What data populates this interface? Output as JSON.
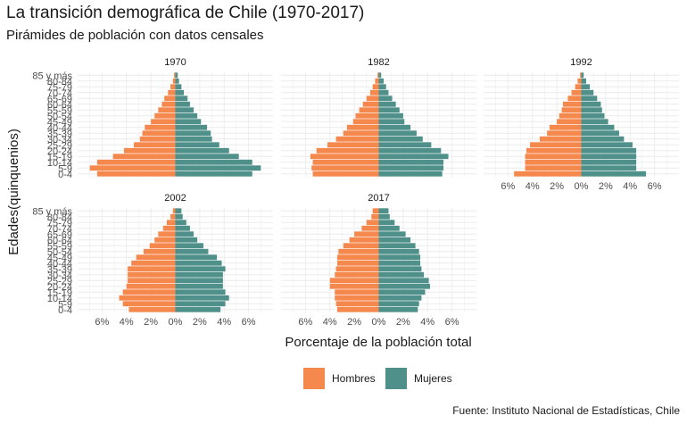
{
  "title": "La transición demográfica de Chile (1970-2017)",
  "subtitle": "Pirámides de población con datos censales",
  "caption": "Fuente: Instituto Nacional de Estadísticas, Chile",
  "colors": {
    "hombres": "#F5884C",
    "mujeres": "#4F908A"
  },
  "chart_data": {
    "type": "bar",
    "orientation": "horizontal",
    "xlabel": "Porcentaje de la población total",
    "ylabel": "Edades(quinquenios)",
    "xlim": [
      -8,
      8
    ],
    "x_ticks": [
      "6%",
      "4%",
      "2%",
      "0%",
      "2%",
      "4%",
      "6%"
    ],
    "x_tick_values": [
      -6,
      -4,
      -2,
      0,
      2,
      4,
      6
    ],
    "age_groups": [
      "0-4",
      "5-9",
      "10-14",
      "15-19",
      "20-24",
      "25-29",
      "30-34",
      "35-39",
      "40-44",
      "45-49",
      "50-54",
      "55-59",
      "60-64",
      "65-69",
      "70-74",
      "75-79",
      "80-84",
      "85 y más"
    ],
    "legend": [
      "Hombres",
      "Mujeres"
    ],
    "legend_position": "bottom",
    "grid": true,
    "panels": [
      {
        "year": "1970",
        "hombres": [
          6.4,
          7.0,
          6.4,
          5.1,
          4.2,
          3.4,
          2.9,
          2.7,
          2.5,
          2.0,
          1.7,
          1.4,
          1.1,
          0.9,
          0.6,
          0.4,
          0.2,
          0.1
        ],
        "mujeres": [
          6.3,
          7.0,
          6.3,
          5.2,
          4.4,
          3.6,
          3.0,
          2.9,
          2.6,
          2.1,
          1.8,
          1.5,
          1.2,
          1.0,
          0.7,
          0.5,
          0.3,
          0.2
        ]
      },
      {
        "year": "1982",
        "hombres": [
          5.4,
          5.5,
          5.4,
          5.6,
          5.1,
          4.2,
          3.5,
          2.9,
          2.6,
          2.1,
          1.9,
          1.6,
          1.3,
          1.0,
          0.7,
          0.5,
          0.3,
          0.1
        ],
        "mujeres": [
          5.2,
          5.3,
          5.3,
          5.7,
          5.1,
          4.3,
          3.6,
          3.1,
          2.6,
          2.1,
          2.0,
          1.7,
          1.4,
          1.1,
          0.8,
          0.6,
          0.4,
          0.2
        ]
      },
      {
        "year": "1992",
        "hombres": [
          5.5,
          4.6,
          4.6,
          4.6,
          4.5,
          4.2,
          3.4,
          2.8,
          2.6,
          2.0,
          1.8,
          1.6,
          1.5,
          1.1,
          0.8,
          0.5,
          0.3,
          0.1
        ],
        "mujeres": [
          5.3,
          4.5,
          4.5,
          4.5,
          4.5,
          4.2,
          3.5,
          3.1,
          2.7,
          2.2,
          1.9,
          1.7,
          1.6,
          1.3,
          1.0,
          0.7,
          0.4,
          0.2
        ]
      },
      {
        "year": "2002",
        "hombres": [
          3.8,
          4.3,
          4.6,
          4.3,
          4.0,
          3.9,
          3.9,
          3.9,
          3.6,
          3.2,
          2.6,
          2.1,
          1.7,
          1.4,
          1.0,
          0.7,
          0.4,
          0.2
        ],
        "mujeres": [
          3.7,
          4.1,
          4.4,
          4.1,
          3.9,
          3.9,
          3.9,
          4.1,
          3.8,
          3.4,
          2.7,
          2.3,
          1.8,
          1.5,
          1.2,
          0.9,
          0.6,
          0.5
        ]
      },
      {
        "year": "2017",
        "hombres": [
          3.4,
          3.5,
          3.6,
          3.6,
          4.0,
          4.0,
          3.6,
          3.5,
          3.4,
          3.4,
          3.3,
          2.9,
          2.4,
          2.0,
          1.4,
          1.0,
          0.6,
          0.5
        ],
        "mujeres": [
          3.2,
          3.3,
          3.5,
          3.8,
          4.2,
          4.1,
          3.7,
          3.5,
          3.4,
          3.4,
          3.3,
          3.0,
          2.6,
          2.2,
          1.7,
          1.3,
          0.9,
          0.8
        ]
      }
    ]
  }
}
